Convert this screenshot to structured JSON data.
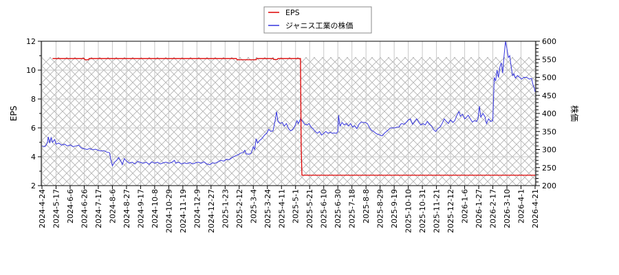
{
  "chart_data": {
    "type": "line",
    "title": "",
    "legend": {
      "position": "top-center",
      "entries": [
        {
          "label": "EPS",
          "color": "#dd0000"
        },
        {
          "label": "ジャニス工業の株価",
          "color": "#3333dd"
        }
      ]
    },
    "xlabel": "",
    "ylabel_left": "EPS",
    "ylabel_right": "株価",
    "ylim_left": [
      2,
      12
    ],
    "ylim_right": [
      200,
      600
    ],
    "yticks_left": [
      2,
      4,
      6,
      8,
      10,
      12
    ],
    "yticks_right": [
      200,
      250,
      300,
      350,
      400,
      450,
      500,
      550,
      600
    ],
    "grid": true,
    "x_tick_labels": [
      "2024-4-24",
      "2024-5-17",
      "2024-6-6",
      "2024-6-26",
      "2024-7-17",
      "2024-8-6",
      "2024-8-27",
      "2024-9-17",
      "2024-10-8",
      "2024-10-29",
      "2024-11-19",
      "2024-12-9",
      "2024-12-27",
      "2025-1-23",
      "2025-2-12",
      "2025-3-4",
      "2025-3-24",
      "2025-4-11",
      "2025-5-1",
      "2025-5-21",
      "2025-6-10",
      "2025-6-30",
      "2025-7-18",
      "2025-8-8",
      "2025-8-29",
      "2025-9-19",
      "2025-10-10",
      "2025-10-31",
      "2025-11-21",
      "2025-12-12",
      "2026-1-6",
      "2026-1-27",
      "2026-2-17",
      "2026-3-10",
      "2026-4-1",
      "2026-4-21"
    ],
    "series": [
      {
        "name": "EPS",
        "axis": "left",
        "color": "#dd0000",
        "points": [
          [
            0.75,
            10.8
          ],
          [
            3.0,
            10.8
          ],
          [
            3.05,
            10.72
          ],
          [
            3.3,
            10.72
          ],
          [
            3.35,
            10.8
          ],
          [
            13.8,
            10.8
          ],
          [
            13.85,
            10.72
          ],
          [
            15.2,
            10.72
          ],
          [
            15.25,
            10.8
          ],
          [
            16.4,
            10.8
          ],
          [
            16.45,
            10.74
          ],
          [
            16.7,
            10.74
          ],
          [
            16.75,
            10.8
          ],
          [
            18.35,
            10.8
          ],
          [
            18.4,
            4.7
          ],
          [
            18.45,
            2.72
          ],
          [
            35.0,
            2.72
          ]
        ]
      },
      {
        "name": "ジャニス工業の株価",
        "axis": "right",
        "color": "#3333dd",
        "points": [
          [
            0.0,
            310
          ],
          [
            0.2,
            308
          ],
          [
            0.3,
            312
          ],
          [
            0.4,
            322
          ],
          [
            0.45,
            335
          ],
          [
            0.55,
            318
          ],
          [
            0.65,
            333
          ],
          [
            0.75,
            320
          ],
          [
            0.9,
            328
          ],
          [
            1.0,
            315
          ],
          [
            1.2,
            318
          ],
          [
            1.4,
            312
          ],
          [
            1.6,
            315
          ],
          [
            1.8,
            310
          ],
          [
            2.0,
            313
          ],
          [
            2.2,
            308
          ],
          [
            2.4,
            310
          ],
          [
            2.6,
            312
          ],
          [
            2.8,
            304
          ],
          [
            3.0,
            302
          ],
          [
            3.2,
            300
          ],
          [
            3.4,
            303
          ],
          [
            3.6,
            299
          ],
          [
            3.8,
            301
          ],
          [
            4.0,
            298
          ],
          [
            4.2,
            296
          ],
          [
            4.4,
            297
          ],
          [
            4.6,
            293
          ],
          [
            4.8,
            291
          ],
          [
            4.9,
            270
          ],
          [
            5.0,
            255
          ],
          [
            5.15,
            265
          ],
          [
            5.3,
            270
          ],
          [
            5.45,
            278
          ],
          [
            5.6,
            268
          ],
          [
            5.7,
            258
          ],
          [
            5.85,
            275
          ],
          [
            6.0,
            268
          ],
          [
            6.2,
            262
          ],
          [
            6.4,
            265
          ],
          [
            6.6,
            260
          ],
          [
            6.8,
            267
          ],
          [
            7.0,
            264
          ],
          [
            7.2,
            262
          ],
          [
            7.4,
            265
          ],
          [
            7.6,
            259
          ],
          [
            7.8,
            266
          ],
          [
            8.0,
            262
          ],
          [
            8.2,
            265
          ],
          [
            8.4,
            260
          ],
          [
            8.6,
            263
          ],
          [
            8.8,
            265
          ],
          [
            9.0,
            262
          ],
          [
            9.2,
            264
          ],
          [
            9.4,
            270
          ],
          [
            9.5,
            262
          ],
          [
            9.7,
            265
          ],
          [
            9.9,
            260
          ],
          [
            10.1,
            263
          ],
          [
            10.3,
            261
          ],
          [
            10.5,
            264
          ],
          [
            10.7,
            260
          ],
          [
            10.9,
            263
          ],
          [
            11.1,
            265
          ],
          [
            11.3,
            262
          ],
          [
            11.5,
            266
          ],
          [
            11.7,
            260
          ],
          [
            11.9,
            258
          ],
          [
            12.1,
            263
          ],
          [
            12.3,
            262
          ],
          [
            12.5,
            266
          ],
          [
            12.7,
            270
          ],
          [
            12.9,
            268
          ],
          [
            13.1,
            273
          ],
          [
            13.3,
            272
          ],
          [
            13.5,
            278
          ],
          [
            13.7,
            282
          ],
          [
            13.9,
            285
          ],
          [
            14.1,
            290
          ],
          [
            14.3,
            292
          ],
          [
            14.4,
            298
          ],
          [
            14.5,
            288
          ],
          [
            14.7,
            287
          ],
          [
            14.85,
            290
          ],
          [
            15.0,
            308
          ],
          [
            15.1,
            300
          ],
          [
            15.2,
            330
          ],
          [
            15.3,
            318
          ],
          [
            15.45,
            325
          ],
          [
            15.6,
            330
          ],
          [
            15.8,
            340
          ],
          [
            15.95,
            345
          ],
          [
            16.1,
            356
          ],
          [
            16.25,
            350
          ],
          [
            16.4,
            352
          ],
          [
            16.55,
            380
          ],
          [
            16.65,
            405
          ],
          [
            16.75,
            378
          ],
          [
            16.9,
            372
          ],
          [
            17.05,
            375
          ],
          [
            17.2,
            365
          ],
          [
            17.35,
            372
          ],
          [
            17.5,
            358
          ],
          [
            17.65,
            352
          ],
          [
            17.8,
            355
          ],
          [
            17.95,
            365
          ],
          [
            18.1,
            380
          ],
          [
            18.2,
            372
          ],
          [
            18.35,
            385
          ],
          [
            18.5,
            378
          ],
          [
            18.65,
            370
          ],
          [
            18.8,
            368
          ],
          [
            18.95,
            372
          ],
          [
            19.1,
            362
          ],
          [
            19.25,
            357
          ],
          [
            19.4,
            350
          ],
          [
            19.55,
            345
          ],
          [
            19.7,
            350
          ],
          [
            19.85,
            340
          ],
          [
            20.0,
            345
          ],
          [
            20.15,
            350
          ],
          [
            20.3,
            345
          ],
          [
            20.45,
            348
          ],
          [
            20.6,
            345
          ],
          [
            20.75,
            346
          ],
          [
            20.9,
            345
          ],
          [
            21.0,
            350
          ],
          [
            21.05,
            395
          ],
          [
            21.15,
            365
          ],
          [
            21.3,
            375
          ],
          [
            21.45,
            368
          ],
          [
            21.6,
            372
          ],
          [
            21.75,
            365
          ],
          [
            21.9,
            372
          ],
          [
            22.05,
            362
          ],
          [
            22.2,
            366
          ],
          [
            22.35,
            358
          ],
          [
            22.5,
            370
          ],
          [
            22.65,
            376
          ],
          [
            22.8,
            375
          ],
          [
            22.95,
            375
          ],
          [
            23.1,
            372
          ],
          [
            23.25,
            360
          ],
          [
            23.4,
            353
          ],
          [
            23.55,
            350
          ],
          [
            23.7,
            345
          ],
          [
            23.85,
            342
          ],
          [
            24.0,
            340
          ],
          [
            24.15,
            338
          ],
          [
            24.3,
            345
          ],
          [
            24.45,
            350
          ],
          [
            24.6,
            355
          ],
          [
            24.75,
            360
          ],
          [
            24.9,
            360
          ],
          [
            25.05,
            360
          ],
          [
            25.2,
            362
          ],
          [
            25.35,
            362
          ],
          [
            25.45,
            370
          ],
          [
            25.55,
            372
          ],
          [
            25.7,
            370
          ],
          [
            25.85,
            375
          ],
          [
            26.0,
            382
          ],
          [
            26.15,
            385
          ],
          [
            26.3,
            370
          ],
          [
            26.45,
            378
          ],
          [
            26.6,
            385
          ],
          [
            26.75,
            375
          ],
          [
            26.9,
            368
          ],
          [
            27.05,
            372
          ],
          [
            27.2,
            368
          ],
          [
            27.35,
            378
          ],
          [
            27.5,
            370
          ],
          [
            27.65,
            365
          ],
          [
            27.8,
            355
          ],
          [
            27.95,
            350
          ],
          [
            28.1,
            358
          ],
          [
            28.25,
            362
          ],
          [
            28.4,
            372
          ],
          [
            28.55,
            385
          ],
          [
            28.7,
            378
          ],
          [
            28.85,
            372
          ],
          [
            29.0,
            382
          ],
          [
            29.15,
            375
          ],
          [
            29.3,
            380
          ],
          [
            29.45,
            395
          ],
          [
            29.6,
            405
          ],
          [
            29.7,
            392
          ],
          [
            29.85,
            398
          ],
          [
            30.0,
            385
          ],
          [
            30.1,
            388
          ],
          [
            30.25,
            395
          ],
          [
            30.4,
            385
          ],
          [
            30.55,
            376
          ],
          [
            30.7,
            380
          ],
          [
            30.85,
            378
          ],
          [
            30.95,
            386
          ],
          [
            31.05,
            420
          ],
          [
            31.15,
            390
          ],
          [
            31.3,
            400
          ],
          [
            31.45,
            390
          ],
          [
            31.55,
            372
          ],
          [
            31.7,
            385
          ],
          [
            31.85,
            378
          ],
          [
            32.0,
            380
          ],
          [
            32.1,
            500
          ],
          [
            32.2,
            490
          ],
          [
            32.3,
            520
          ],
          [
            32.4,
            500
          ],
          [
            32.5,
            528
          ],
          [
            32.6,
            540
          ],
          [
            32.7,
            512
          ],
          [
            32.8,
            560
          ],
          [
            32.9,
            600
          ],
          [
            33.0,
            580
          ],
          [
            33.1,
            555
          ],
          [
            33.2,
            560
          ],
          [
            33.3,
            530
          ],
          [
            33.4,
            505
          ],
          [
            33.5,
            510
          ],
          [
            33.6,
            498
          ],
          [
            33.75,
            505
          ],
          [
            33.9,
            500
          ],
          [
            34.05,
            495
          ],
          [
            34.2,
            500
          ],
          [
            34.4,
            500
          ],
          [
            34.6,
            495
          ],
          [
            34.75,
            497
          ],
          [
            34.85,
            480
          ],
          [
            34.95,
            470
          ],
          [
            35.0,
            460
          ]
        ]
      }
    ],
    "shaded_region": {
      "x_from": 0,
      "x_to": 35,
      "y_from_left": 2,
      "y_to_left": 10.9,
      "pattern": "crosshatch"
    }
  }
}
